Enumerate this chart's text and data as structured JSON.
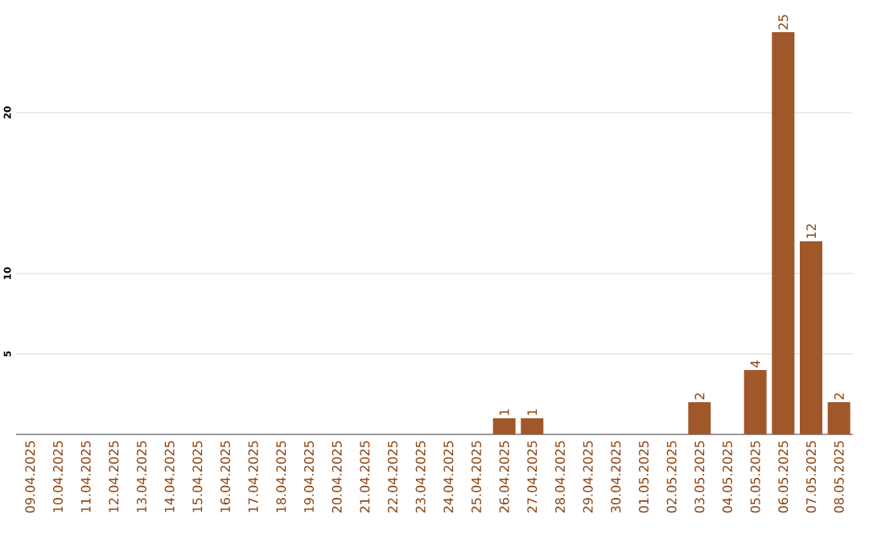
{
  "chart_data": {
    "type": "bar",
    "categories": [
      "09.04.2025",
      "10.04.2025",
      "11.04.2025",
      "12.04.2025",
      "13.04.2025",
      "14.04.2025",
      "15.04.2025",
      "16.04.2025",
      "17.04.2025",
      "18.04.2025",
      "19.04.2025",
      "20.04.2025",
      "21.04.2025",
      "22.04.2025",
      "23.04.2025",
      "24.04.2025",
      "25.04.2025",
      "26.04.2025",
      "27.04.2025",
      "28.04.2025",
      "29.04.2025",
      "30.04.2025",
      "01.05.2025",
      "02.05.2025",
      "03.05.2025",
      "04.05.2025",
      "05.05.2025",
      "06.05.2025",
      "07.05.2025",
      "08.05.2025"
    ],
    "values": [
      0,
      0,
      0,
      0,
      0,
      0,
      0,
      0,
      0,
      0,
      0,
      0,
      0,
      0,
      0,
      0,
      0,
      1,
      1,
      0,
      0,
      0,
      0,
      0,
      2,
      0,
      4,
      25,
      12,
      2
    ],
    "value_labels": [
      null,
      null,
      null,
      null,
      null,
      null,
      null,
      null,
      null,
      null,
      null,
      null,
      null,
      null,
      null,
      null,
      null,
      "1",
      "1",
      null,
      null,
      null,
      null,
      null,
      "2",
      null,
      "4",
      "25",
      "12",
      "2"
    ],
    "color": "#a0572a",
    "ylim": [
      0,
      25
    ],
    "yticks": [
      5,
      10,
      20
    ],
    "grid": "y"
  }
}
